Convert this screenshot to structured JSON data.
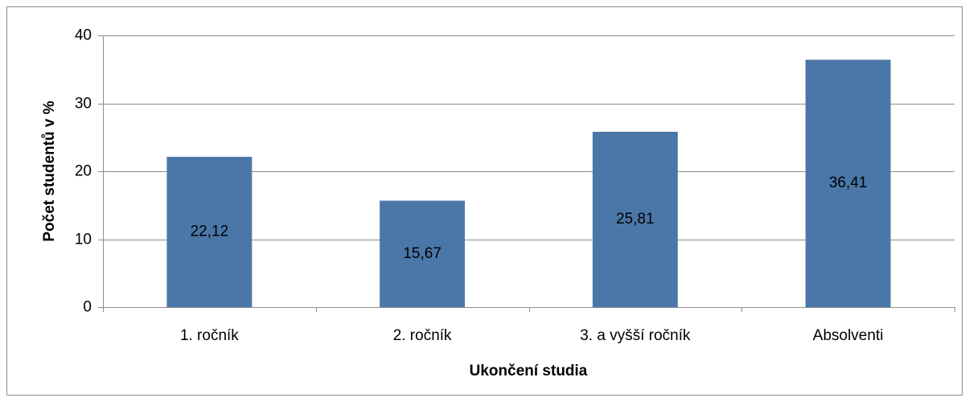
{
  "chart_data": {
    "type": "bar",
    "x_label": "Ukončení studia",
    "y_label": "Počet studentů v %",
    "categories": [
      "1. ročník",
      "2. ročník",
      "3. a vyšší ročník",
      "Absolventi"
    ],
    "values": [
      22.12,
      15.67,
      25.81,
      36.41
    ],
    "value_labels": [
      "22,12",
      "15,67",
      "25,81",
      "36,41"
    ],
    "color": "#4a77a8",
    "ylim": [
      0,
      40
    ],
    "yticks": [
      0,
      10,
      20,
      30,
      40
    ],
    "grid": true
  }
}
